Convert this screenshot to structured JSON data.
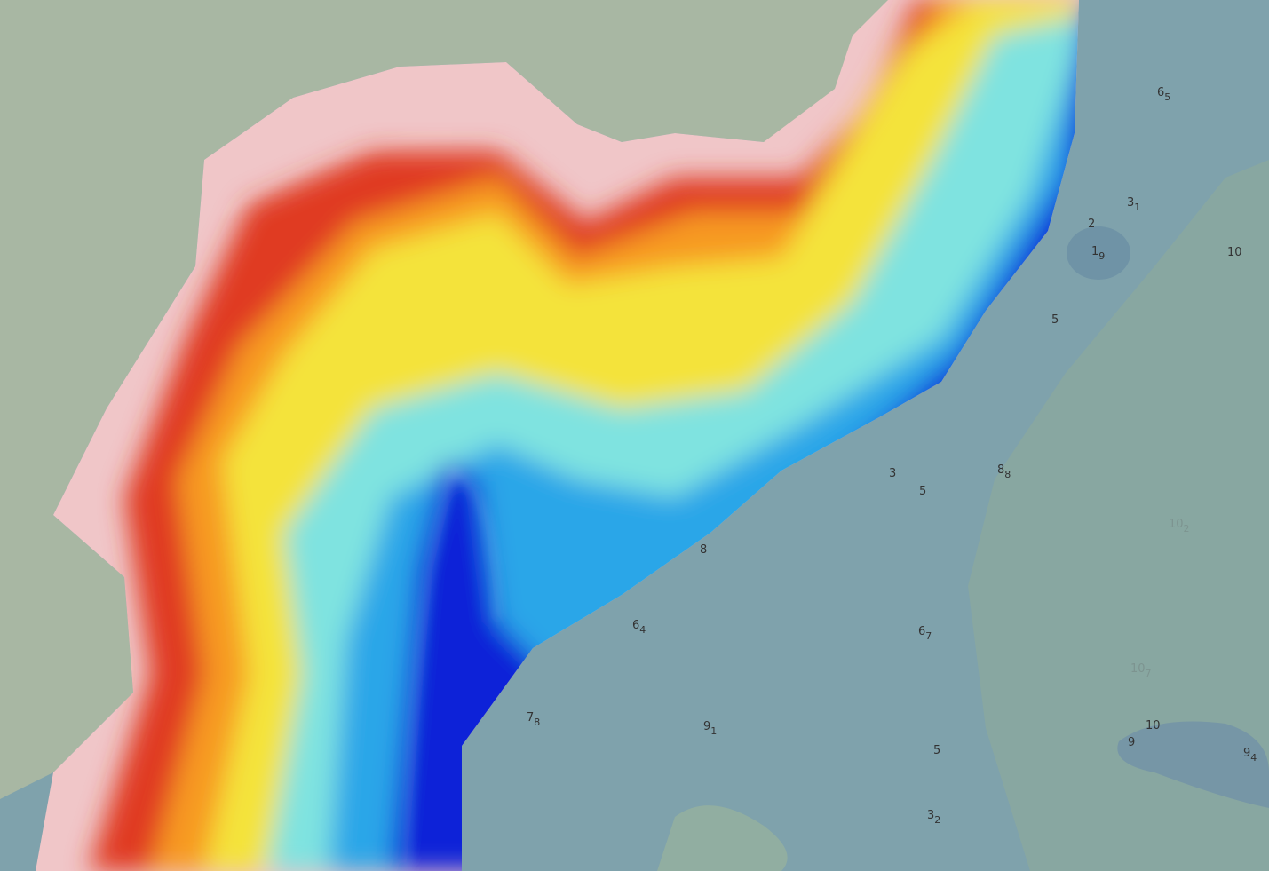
{
  "soundings": [
    {
      "depth": "6",
      "sub": "5"
    },
    {
      "depth": "3",
      "sub": "1"
    },
    {
      "depth": "2"
    },
    {
      "depth": "1",
      "sub": "9"
    },
    {
      "depth": "10"
    },
    {
      "depth": "5"
    },
    {
      "depth": "3"
    },
    {
      "depth": "5"
    },
    {
      "depth": "8",
      "sub": "8"
    },
    {
      "depth": "10",
      "sub": "2"
    },
    {
      "depth": "8"
    },
    {
      "depth": "6",
      "sub": "4"
    },
    {
      "depth": "6",
      "sub": "7"
    },
    {
      "depth": "10",
      "sub": "7"
    },
    {
      "depth": "7",
      "sub": "8"
    },
    {
      "depth": "9",
      "sub": "1"
    },
    {
      "depth": "10"
    },
    {
      "depth": "9"
    },
    {
      "depth": "5"
    },
    {
      "depth": "9",
      "sub": "4"
    },
    {
      "depth": "3",
      "sub": "2"
    }
  ]
}
